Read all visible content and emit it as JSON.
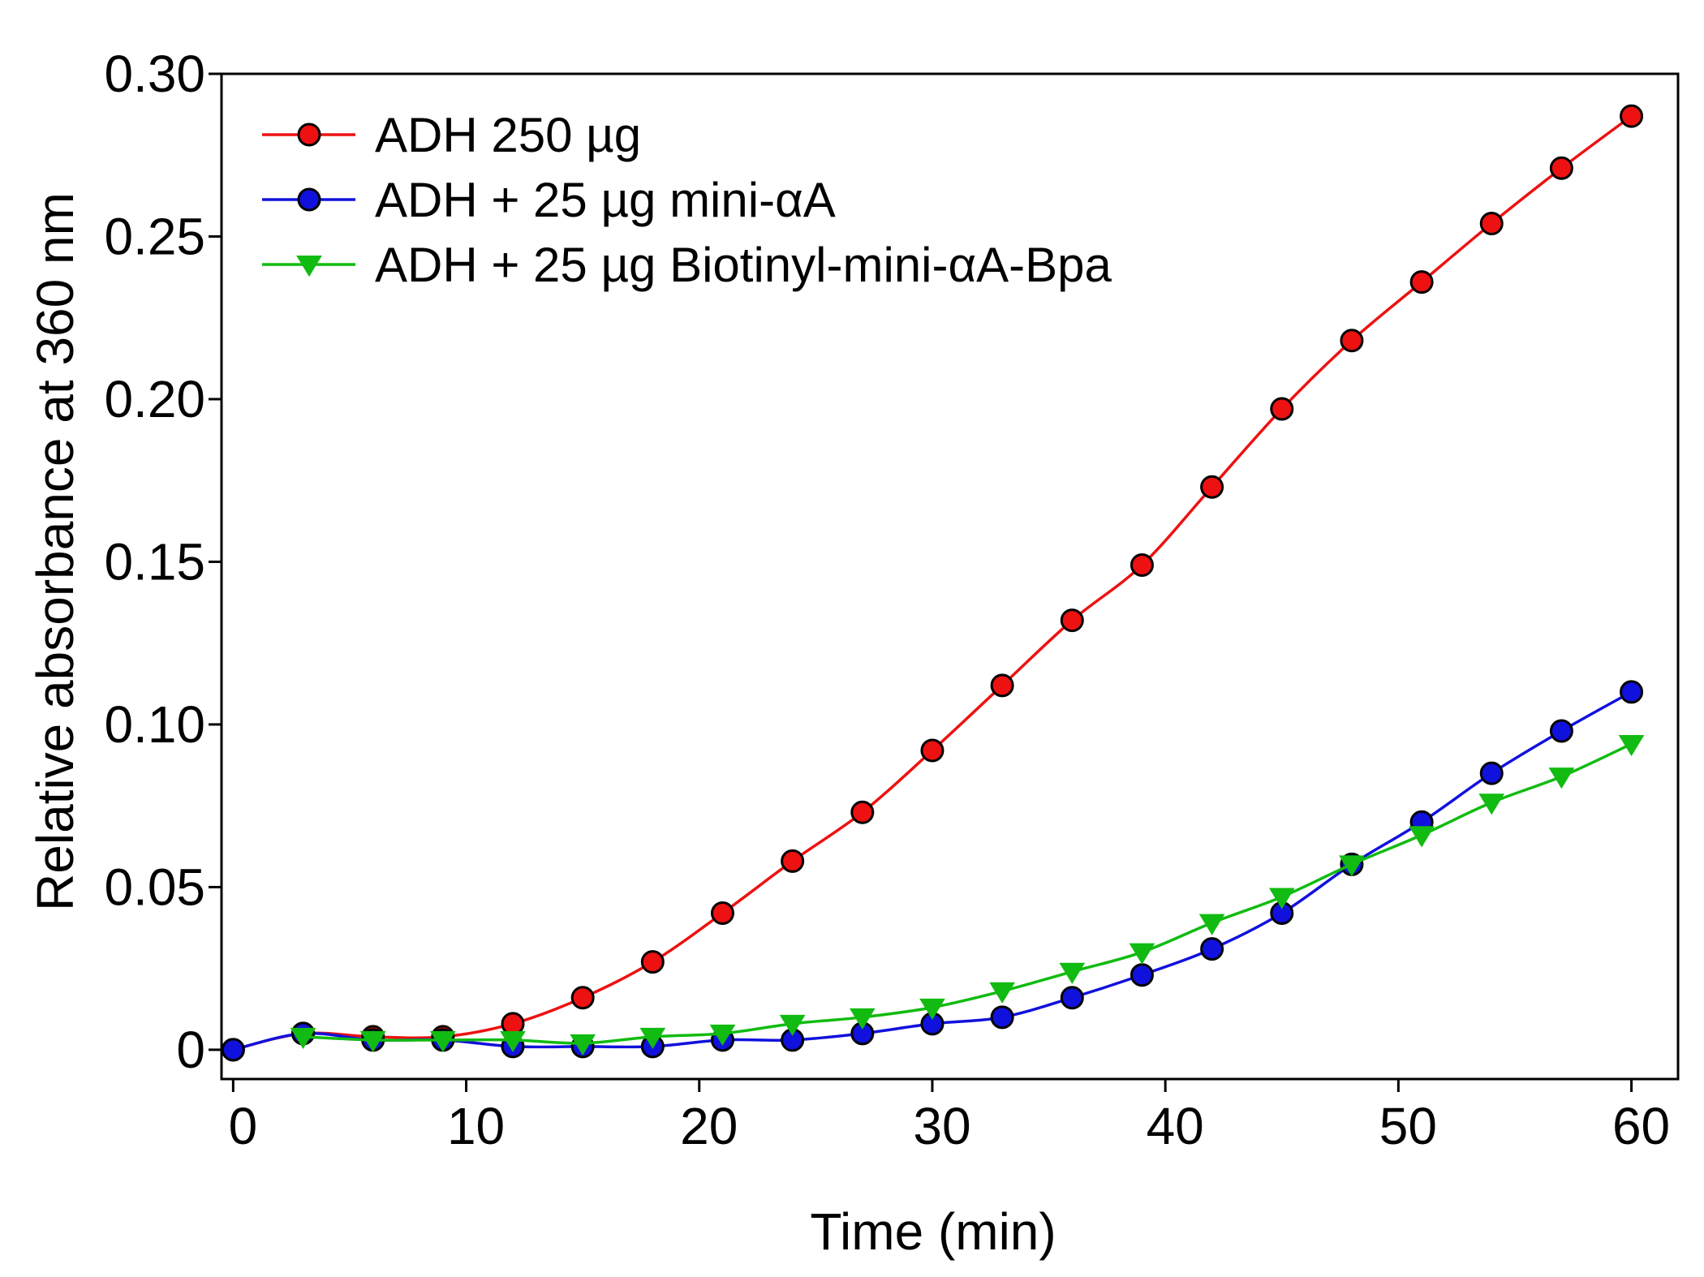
{
  "chart_data": {
    "type": "line",
    "title": "",
    "xlabel": "Time (min)",
    "ylabel": "Relative absorbance at 360 nm",
    "xlim": [
      -0.5,
      62
    ],
    "ylim": [
      -0.009,
      0.3
    ],
    "xticks": [
      0,
      10,
      20,
      30,
      40,
      50,
      60
    ],
    "xtick_labels": [
      "0",
      "10",
      "20",
      "30",
      "40",
      "50",
      "60"
    ],
    "yticks": [
      0,
      0.05,
      0.1,
      0.15,
      0.2,
      0.25,
      0.3
    ],
    "ytick_labels": [
      "0",
      "0.05",
      "0.10",
      "0.15",
      "0.20",
      "0.25",
      "0.30"
    ],
    "grid": false,
    "legend_position": "top-left",
    "series": [
      {
        "name": "ADH 250 µg",
        "color": "#ee1111",
        "marker": "circle",
        "x": [
          0,
          3,
          6,
          9,
          12,
          15,
          18,
          21,
          24,
          27,
          30,
          33,
          36,
          39,
          42,
          45,
          48,
          51,
          54,
          57,
          60
        ],
        "y": [
          0.0,
          0.005,
          0.004,
          0.004,
          0.008,
          0.016,
          0.027,
          0.042,
          0.058,
          0.073,
          0.092,
          0.112,
          0.132,
          0.149,
          0.173,
          0.197,
          0.218,
          0.236,
          0.254,
          0.271,
          0.287
        ]
      },
      {
        "name": "ADH + 25 µg mini-αA",
        "color": "#1111dd",
        "marker": "circle",
        "x": [
          0,
          3,
          6,
          9,
          12,
          15,
          18,
          21,
          24,
          27,
          30,
          33,
          36,
          39,
          42,
          45,
          48,
          51,
          54,
          57,
          60
        ],
        "y": [
          0.0,
          0.005,
          0.003,
          0.003,
          0.001,
          0.001,
          0.001,
          0.003,
          0.003,
          0.005,
          0.008,
          0.01,
          0.016,
          0.023,
          0.031,
          0.042,
          0.057,
          0.07,
          0.085,
          0.098,
          0.11
        ]
      },
      {
        "name": "ADH + 25 µg Biotinyl-mini-αA-Bpa",
        "color": "#11bb11",
        "marker": "triangle-down",
        "x": [
          3,
          6,
          9,
          12,
          15,
          18,
          21,
          24,
          27,
          30,
          33,
          36,
          39,
          42,
          45,
          48,
          51,
          54,
          57,
          60
        ],
        "y": [
          0.004,
          0.003,
          0.003,
          0.003,
          0.002,
          0.004,
          0.005,
          0.008,
          0.01,
          0.013,
          0.018,
          0.024,
          0.03,
          0.039,
          0.047,
          0.057,
          0.066,
          0.076,
          0.084,
          0.094
        ]
      }
    ]
  }
}
